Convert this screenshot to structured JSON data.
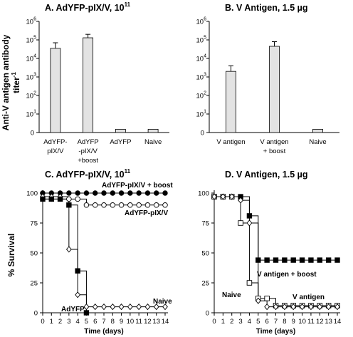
{
  "y_axis_label_bar": [
    "Anti-V antigen antibody",
    "titer"
  ],
  "y_axis_label_bar_sup": "-1",
  "chart_data": [
    {
      "type": "bar",
      "title": "A. AdYFP-pIX/V, 10",
      "title_sup": "11",
      "categories": [
        [
          "AdYFP-",
          "pIX/V"
        ],
        [
          "AdYFP",
          "-pIX/V",
          "+boost"
        ],
        [
          "AdYFP"
        ],
        [
          "Naive"
        ]
      ],
      "values": [
        35000,
        130000,
        1.5,
        1.5
      ],
      "errors": [
        35000,
        70000,
        0,
        0
      ],
      "scale": "log",
      "ylim": [
        1,
        1000000
      ],
      "yticks": [
        1,
        10,
        100,
        1000,
        10000,
        100000,
        1000000
      ],
      "ytick_labels": [
        [
          "0",
          ""
        ],
        [
          "10",
          "1"
        ],
        [
          "10",
          "2"
        ],
        [
          "10",
          "3"
        ],
        [
          "10",
          "4"
        ],
        [
          "10",
          "5"
        ],
        [
          "10",
          "6"
        ]
      ]
    },
    {
      "type": "bar",
      "title": "B. V Antigen, 1.5 µg",
      "categories": [
        [
          "V antigen"
        ],
        [
          "V antigen",
          "+ boost"
        ],
        [
          "Naive"
        ]
      ],
      "values": [
        2000,
        45000,
        1.5
      ],
      "errors": [
        2000,
        35000,
        0
      ],
      "scale": "log",
      "ylim": [
        1,
        1000000
      ],
      "yticks": [
        1,
        10,
        100,
        1000,
        10000,
        100000,
        1000000
      ],
      "ytick_labels": [
        [
          "0",
          ""
        ],
        [
          "10",
          "1"
        ],
        [
          "10",
          "2"
        ],
        [
          "10",
          "3"
        ],
        [
          "10",
          "4"
        ],
        [
          "10",
          "5"
        ],
        [
          "10",
          "6"
        ]
      ]
    },
    {
      "type": "line",
      "title": "C. AdYFP-pIX/V, 10",
      "title_sup": "11",
      "xlabel": "Time (days)",
      "ylabel": "% Survival",
      "xlim": [
        0,
        14
      ],
      "ylim": [
        0,
        100
      ],
      "xticks": [
        "0",
        "1",
        "2",
        "3",
        "4",
        "5",
        "6",
        "7",
        "8",
        "9",
        "10",
        "11",
        "12",
        "13",
        "14"
      ],
      "yticks": [
        "0",
        "25",
        "50",
        "75",
        "100"
      ],
      "series": [
        {
          "name": "AdYFP-pIX/V + boost",
          "marker": "filled-circle",
          "x": [
            0,
            1,
            2,
            3,
            4,
            5,
            6,
            7,
            8,
            9,
            10,
            11,
            12,
            13,
            14
          ],
          "y": [
            100,
            100,
            100,
            100,
            100,
            100,
            100,
            100,
            100,
            100,
            100,
            100,
            100,
            100,
            100
          ]
        },
        {
          "name": "AdYFP-pIX/V",
          "marker": "open-circle",
          "x": [
            0,
            1,
            2,
            3,
            4,
            5,
            6,
            7,
            8,
            9,
            10,
            11,
            12,
            13,
            14
          ],
          "y": [
            95,
            95,
            95,
            95,
            95,
            90,
            90,
            90,
            90,
            90,
            90,
            90,
            90,
            90,
            90
          ]
        },
        {
          "name": "Naive",
          "marker": "open-diamond",
          "x": [
            0,
            1,
            2,
            3,
            4,
            5,
            6,
            7,
            8,
            9,
            10,
            11,
            12,
            13,
            14
          ],
          "y": [
            97,
            97,
            97,
            53,
            15,
            5,
            5,
            5,
            5,
            5,
            5,
            5,
            5,
            5,
            5
          ]
        },
        {
          "name": "AdYFP",
          "marker": "filled-square",
          "x": [
            0,
            1,
            2,
            3,
            4,
            5
          ],
          "y": [
            95,
            95,
            95,
            90,
            35,
            0
          ]
        }
      ],
      "annotations": [
        "AdYFP-pIX/V + boost",
        "AdYFP-pIX/V",
        "Naive",
        "AdYFP"
      ]
    },
    {
      "type": "line",
      "title": "D. V Antigen, 1.5 µg",
      "xlabel": "Time (days)",
      "xlim": [
        0,
        14
      ],
      "ylim": [
        0,
        100
      ],
      "xticks": [
        "0",
        "1",
        "2",
        "3",
        "4",
        "5",
        "6",
        "7",
        "8",
        "9",
        "10",
        "11",
        "12",
        "13",
        "14"
      ],
      "yticks": [
        "0",
        "25",
        "50",
        "75",
        "100"
      ],
      "series": [
        {
          "name": "V antigen + boost",
          "marker": "filled-square",
          "x": [
            0,
            1,
            2,
            3,
            4,
            5,
            6,
            7,
            8,
            9,
            10,
            11,
            12,
            13,
            14
          ],
          "y": [
            97,
            97,
            97,
            97,
            81,
            44,
            44,
            44,
            44,
            44,
            44,
            44,
            44,
            44,
            44
          ]
        },
        {
          "name": "V antigen",
          "marker": "open-square",
          "x": [
            0,
            1,
            2,
            3,
            4,
            5,
            6,
            7,
            8,
            9,
            10,
            11,
            12,
            13,
            14
          ],
          "y": [
            97,
            97,
            97,
            75,
            25,
            12,
            12,
            6,
            6,
            6,
            6,
            6,
            6,
            6,
            6
          ]
        },
        {
          "name": "Naive",
          "marker": "open-diamond",
          "x": [
            0,
            1,
            2,
            3,
            4,
            5,
            6,
            7,
            8,
            9,
            10,
            11,
            12,
            13,
            14
          ],
          "y": [
            97,
            97,
            97,
            94,
            75,
            10,
            5,
            5,
            5,
            5,
            5,
            5,
            5,
            5,
            5
          ]
        }
      ],
      "annotations": [
        "V antigen + boost",
        "V antigen",
        "Naive"
      ]
    }
  ]
}
